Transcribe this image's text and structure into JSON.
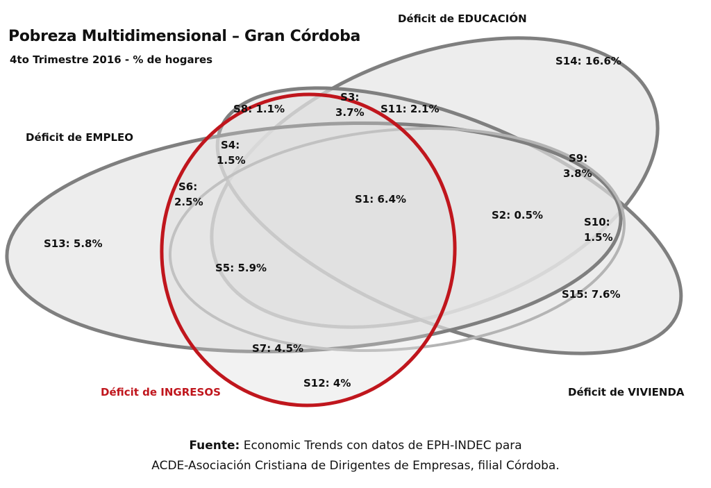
{
  "title": "Pobreza Multidimensional – Gran Córdoba",
  "subtitle": "4to Trimestre 2016 - % de hogares",
  "sets": {
    "educacion": "Déficit de EDUCACIÓN",
    "empleo": "Déficit de EMPLEO",
    "ingresos": "Déficit de INGRESOS",
    "vivienda": "Déficit de VIVIENDA"
  },
  "colors": {
    "ingresos": "#c0161d",
    "outline_dark": "#808080",
    "outline_light": "#b0b0b0",
    "fill": "#e6e6e6"
  },
  "regions": {
    "s1": "S1: 6.4%",
    "s2": "S2: 0.5%",
    "s3_a": "S3:",
    "s3_b": "3.7%",
    "s4_a": "S4:",
    "s4_b": "1.5%",
    "s5": "S5: 5.9%",
    "s6_a": "S6:",
    "s6_b": "2.5%",
    "s7": "S7: 4.5%",
    "s8": "S8: 1.1%",
    "s9_a": "S9:",
    "s9_b": "3.8%",
    "s10_a": "S10:",
    "s10_b": "1.5%",
    "s11": "S11: 2.1%",
    "s12": "S12: 4%",
    "s13": "S13: 5.8%",
    "s14": "S14: 16.6%",
    "s15": "S15: 7.6%"
  },
  "source": {
    "label": "Fuente:",
    "line1": "Economic Trends con datos de EPH-INDEC para",
    "line2": "ACDE-Asociación Cristiana de Dirigentes de Empresas, filial Córdoba."
  }
}
